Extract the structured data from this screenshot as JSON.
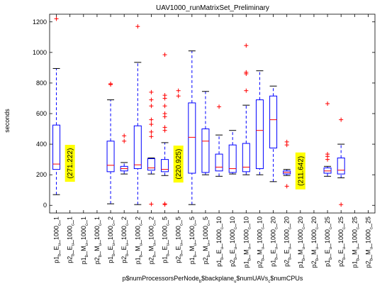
{
  "chart_data": {
    "type": "box",
    "title": "UAV1000_runMatrixSet_Preliminary",
    "ylabel": "seconds",
    "xlabel": "p$numProcessorsPerNode_b$backplane_u$numUAVs_c$numCPUs",
    "ylim": [
      -50,
      1250
    ],
    "yticks": [
      0,
      200,
      400,
      600,
      800,
      1000,
      1200
    ],
    "grid": false,
    "colors": {
      "box": "#0000ff",
      "median": "#ff0000",
      "outlier": "#ff0000",
      "note_bg": "#ffff00"
    },
    "categories": [
      {
        "p": "p1",
        "b": "E",
        "u": "1000",
        "c": "1"
      },
      {
        "p": "p2",
        "b": "E",
        "u": "1000",
        "c": "1"
      },
      {
        "p": "p1",
        "b": "M",
        "u": "1000",
        "c": "1"
      },
      {
        "p": "p2",
        "b": "M",
        "u": "1000",
        "c": "1"
      },
      {
        "p": "p1",
        "b": "E",
        "u": "1000",
        "c": "2"
      },
      {
        "p": "p2",
        "b": "E",
        "u": "1000",
        "c": "2"
      },
      {
        "p": "p1",
        "b": "M",
        "u": "1000",
        "c": "2"
      },
      {
        "p": "p2",
        "b": "M",
        "u": "1000",
        "c": "2"
      },
      {
        "p": "p1",
        "b": "E",
        "u": "1000",
        "c": "5"
      },
      {
        "p": "p2",
        "b": "E",
        "u": "1000",
        "c": "5"
      },
      {
        "p": "p1",
        "b": "M",
        "u": "1000",
        "c": "5"
      },
      {
        "p": "p2",
        "b": "M",
        "u": "1000",
        "c": "5"
      },
      {
        "p": "p1",
        "b": "E",
        "u": "1000",
        "c": "10"
      },
      {
        "p": "p2",
        "b": "E",
        "u": "1000",
        "c": "10"
      },
      {
        "p": "p1",
        "b": "M",
        "u": "1000",
        "c": "10"
      },
      {
        "p": "p2",
        "b": "M",
        "u": "1000",
        "c": "10"
      },
      {
        "p": "p1",
        "b": "E",
        "u": "1000",
        "c": "20"
      },
      {
        "p": "p2",
        "b": "E",
        "u": "1000",
        "c": "20"
      },
      {
        "p": "p1",
        "b": "M",
        "u": "1000",
        "c": "20"
      },
      {
        "p": "p2",
        "b": "M",
        "u": "1000",
        "c": "20"
      },
      {
        "p": "p1",
        "b": "E",
        "u": "1000",
        "c": "25"
      },
      {
        "p": "p2",
        "b": "E",
        "u": "1000",
        "c": "25"
      },
      {
        "p": "p1",
        "b": "M",
        "u": "1000",
        "c": "25"
      },
      {
        "p": "p2",
        "b": "M",
        "u": "1000",
        "c": "25"
      }
    ],
    "boxes": [
      {
        "i": 0,
        "wlo": 70,
        "q1": 235,
        "med": 270,
        "q3": 525,
        "whi": 895,
        "outliers": [
          1220
        ]
      },
      {
        "i": 4,
        "wlo": 10,
        "q1": 220,
        "med": 262,
        "q3": 420,
        "whi": 690,
        "outliers": [
          790,
          795
        ]
      },
      {
        "i": 5,
        "wlo": 205,
        "q1": 225,
        "med": 240,
        "q3": 255,
        "whi": 280,
        "outliers": [
          420,
          455
        ]
      },
      {
        "i": 6,
        "wlo": 5,
        "q1": 240,
        "med": 265,
        "q3": 520,
        "whi": 935,
        "outliers": [
          1170
        ]
      },
      {
        "i": 7,
        "wlo": 205,
        "q1": 230,
        "med": 245,
        "q3": 305,
        "whi": 310,
        "outliers": [
          8,
          450,
          480,
          530,
          560,
          650,
          690,
          740
        ]
      },
      {
        "i": 8,
        "wlo": 195,
        "q1": 220,
        "med": 235,
        "q3": 300,
        "whi": 410,
        "outliers": [
          5,
          10,
          490,
          510,
          580,
          600,
          650,
          700,
          720,
          985
        ]
      },
      {
        "i": 9,
        "wlo": 205,
        "q1": 215,
        "med": 225,
        "q3": 240,
        "whi": 250,
        "outliers": [
          715,
          750
        ]
      },
      {
        "i": 10,
        "wlo": 5,
        "q1": 210,
        "med": 445,
        "q3": 670,
        "whi": 1010,
        "outliers": []
      },
      {
        "i": 11,
        "wlo": 200,
        "q1": 215,
        "med": 420,
        "q3": 500,
        "whi": 745,
        "outliers": []
      },
      {
        "i": 12,
        "wlo": 190,
        "q1": 225,
        "med": 250,
        "q3": 335,
        "whi": 460,
        "outliers": [
          645
        ]
      },
      {
        "i": 13,
        "wlo": 205,
        "q1": 215,
        "med": 240,
        "q3": 395,
        "whi": 490,
        "outliers": []
      },
      {
        "i": 14,
        "wlo": 200,
        "q1": 220,
        "med": 250,
        "q3": 405,
        "whi": 655,
        "outliers": [
          750,
          860,
          870,
          1045
        ]
      },
      {
        "i": 15,
        "wlo": 200,
        "q1": 240,
        "med": 490,
        "q3": 690,
        "whi": 880,
        "outliers": []
      },
      {
        "i": 16,
        "wlo": 155,
        "q1": 375,
        "med": 560,
        "q3": 715,
        "whi": 780,
        "outliers": []
      },
      {
        "i": 17,
        "wlo": 195,
        "q1": 205,
        "med": 215,
        "q3": 225,
        "whi": 235,
        "outliers": [
          125,
          395,
          415
        ]
      },
      {
        "i": 20,
        "wlo": 190,
        "q1": 210,
        "med": 225,
        "q3": 245,
        "whi": 255,
        "outliers": [
          300,
          320,
          335,
          665
        ]
      },
      {
        "i": 21,
        "wlo": 180,
        "q1": 205,
        "med": 230,
        "q3": 310,
        "whi": 400,
        "outliers": [
          5,
          560
        ]
      }
    ],
    "annotations": [
      {
        "i": 1,
        "text": "(271.222)",
        "y": 275
      },
      {
        "i": 9,
        "text": "(220.925)",
        "y": 270
      },
      {
        "i": 18,
        "text": "(211.642)",
        "y": 225
      }
    ]
  }
}
